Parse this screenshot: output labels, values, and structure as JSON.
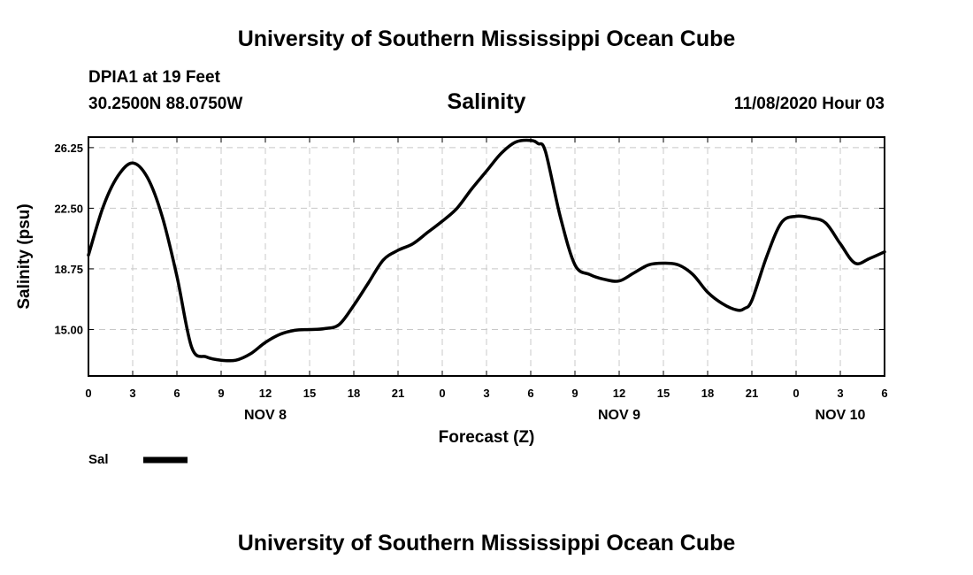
{
  "header": {
    "top_title": "University of Southern Mississippi Ocean Cube",
    "station": "DPIA1 at 19 Feet",
    "coordinates": "30.2500N 88.0750W",
    "datetime": "11/08/2020 Hour 03"
  },
  "footer": {
    "bottom_title": "University of Southern Mississippi Ocean Cube"
  },
  "chart_data": {
    "type": "line",
    "title": "Salinity",
    "xlabel": "Forecast (Z)",
    "ylabel": "Salinity (psu)",
    "xlim": [
      0,
      54
    ],
    "ylim": [
      12.125,
      26.9
    ],
    "grid": true,
    "x_ticks": [
      {
        "x": 0,
        "label": "0"
      },
      {
        "x": 3,
        "label": "3"
      },
      {
        "x": 6,
        "label": "6"
      },
      {
        "x": 9,
        "label": "9"
      },
      {
        "x": 12,
        "label": "12"
      },
      {
        "x": 15,
        "label": "15"
      },
      {
        "x": 18,
        "label": "18"
      },
      {
        "x": 21,
        "label": "21"
      },
      {
        "x": 24,
        "label": "0"
      },
      {
        "x": 27,
        "label": "3"
      },
      {
        "x": 30,
        "label": "6"
      },
      {
        "x": 33,
        "label": "9"
      },
      {
        "x": 36,
        "label": "12"
      },
      {
        "x": 39,
        "label": "15"
      },
      {
        "x": 42,
        "label": "18"
      },
      {
        "x": 45,
        "label": "21"
      },
      {
        "x": 48,
        "label": "0"
      },
      {
        "x": 51,
        "label": "3"
      },
      {
        "x": 54,
        "label": "6"
      }
    ],
    "y_ticks": [
      {
        "y": 15.0,
        "label": "15.00"
      },
      {
        "y": 18.75,
        "label": "18.75"
      },
      {
        "y": 22.5,
        "label": "22.50"
      },
      {
        "y": 26.25,
        "label": "26.25"
      }
    ],
    "day_labels": [
      {
        "x": 12,
        "label": "NOV 8"
      },
      {
        "x": 36,
        "label": "NOV 9"
      },
      {
        "x": 51,
        "label": "NOV 10"
      }
    ],
    "legend": {
      "position": "bottom-left",
      "label": "Sal"
    },
    "series": [
      {
        "name": "Sal",
        "color": "#000000",
        "x": [
          0,
          1,
          2,
          3,
          4,
          5,
          6,
          7,
          8,
          9,
          10,
          11,
          12,
          13,
          14,
          15,
          16,
          17,
          18,
          19,
          20,
          21,
          22,
          23,
          24,
          25,
          26,
          27,
          28,
          29,
          30,
          30.5,
          31,
          32,
          33,
          34,
          35,
          36,
          37,
          38,
          39,
          40,
          41,
          42,
          43,
          44,
          44.5,
          45,
          46,
          47,
          48,
          49,
          50,
          51,
          52,
          53,
          54
        ],
        "y": [
          19.6,
          22.6,
          24.5,
          25.3,
          24.4,
          22.0,
          18.3,
          13.9,
          13.3,
          13.1,
          13.1,
          13.5,
          14.2,
          14.7,
          14.95,
          15.0,
          15.05,
          15.3,
          16.5,
          17.9,
          19.3,
          19.9,
          20.3,
          21.0,
          21.7,
          22.5,
          23.7,
          24.8,
          25.9,
          26.6,
          26.7,
          26.5,
          26.0,
          22.0,
          19.0,
          18.4,
          18.1,
          18.0,
          18.5,
          19.0,
          19.1,
          19.0,
          18.4,
          17.3,
          16.6,
          16.2,
          16.3,
          16.8,
          19.5,
          21.6,
          22.0,
          21.9,
          21.6,
          20.3,
          19.1,
          19.4,
          19.8
        ]
      }
    ]
  }
}
